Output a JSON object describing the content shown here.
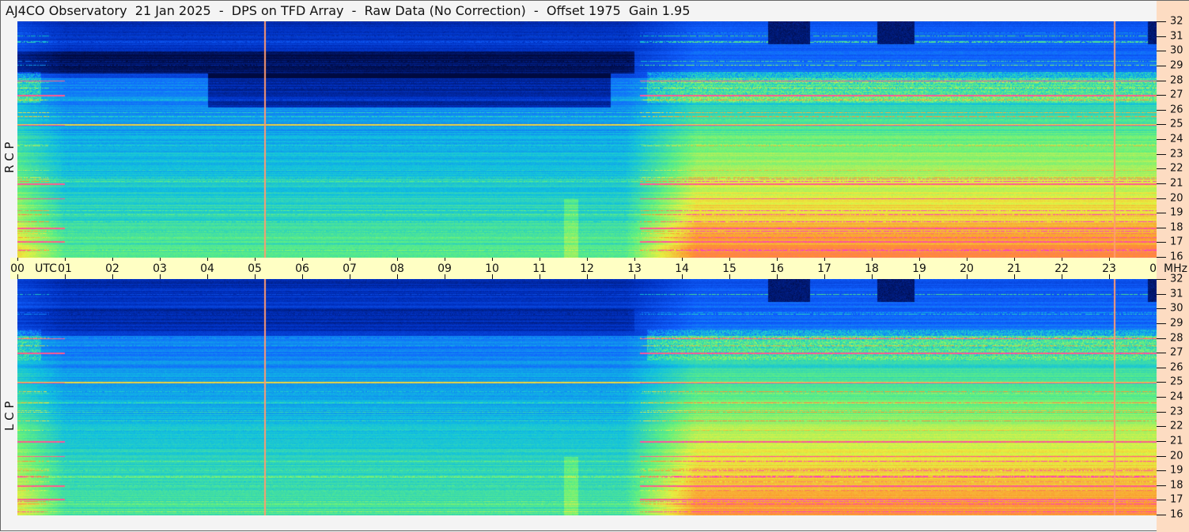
{
  "title": "AJ4CO Observatory  21 Jan 2025  -  DPS on TFD Array  -  Raw Data (No Correction)  -  Offset 1975  Gain 1.95",
  "chart_data": {
    "type": "heatmap",
    "x_label": "UTC",
    "y_unit": "MHz",
    "x_ticks": [
      "00",
      "01",
      "02",
      "03",
      "04",
      "05",
      "06",
      "07",
      "08",
      "09",
      "10",
      "11",
      "12",
      "13",
      "14",
      "15",
      "16",
      "17",
      "18",
      "19",
      "20",
      "21",
      "22",
      "23",
      "00"
    ],
    "y_ticks": [
      16,
      17,
      18,
      19,
      20,
      21,
      22,
      23,
      24,
      25,
      26,
      27,
      28,
      29,
      30,
      31,
      32
    ],
    "xlim": [
      0,
      24
    ],
    "ylim": [
      16,
      32
    ],
    "panels": [
      {
        "label": "R C P"
      },
      {
        "label": "L C P"
      }
    ],
    "vertical_markers_utc": [
      5.2,
      23.1
    ],
    "interference_lines_mhz": [
      17.1,
      18.0,
      20.0,
      21.0,
      25.0,
      27.0,
      28.0
    ],
    "colormap": [
      "#000a40",
      "#0030c0",
      "#1060ff",
      "#10c0e0",
      "#60f080",
      "#e8f040",
      "#ff9030",
      "#ff40c0"
    ]
  }
}
